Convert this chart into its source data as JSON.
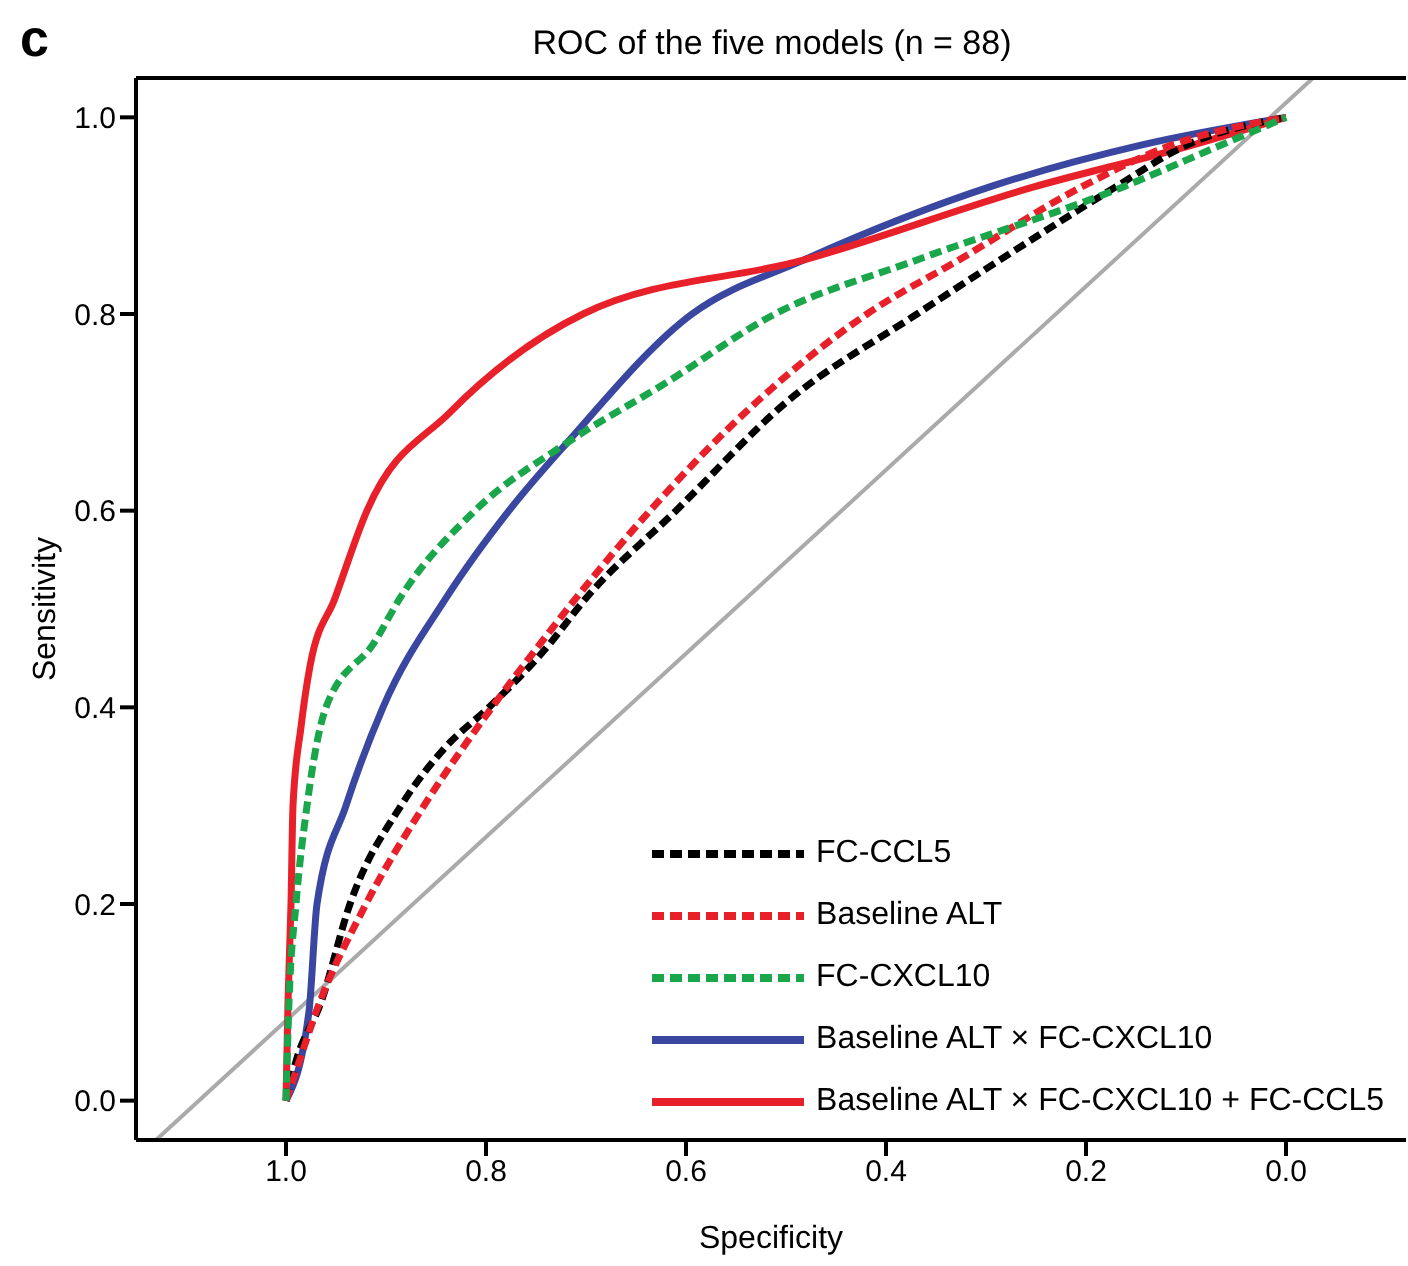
{
  "chart_data": {
    "type": "line",
    "title": "ROC of the five models (n = 88)",
    "xlabel": "Specificity",
    "ylabel": "Sensitivity",
    "annotations": [
      "c"
    ],
    "xlim": [
      1.15,
      -0.12
    ],
    "ylim": [
      -0.04,
      1.04
    ],
    "xticks": [
      {
        "value": 1,
        "label": "1.0"
      },
      0.8,
      0.6,
      0.4,
      0.2,
      {
        "value": 0,
        "label": "0.0"
      }
    ],
    "yticks": [
      {
        "value": 0,
        "label": "0.0"
      },
      0.2,
      0.4,
      0.6,
      0.8,
      {
        "value": 1,
        "label": "1.0"
      }
    ],
    "legend": "bottom right",
    "marker": "none",
    "series": [
      {
        "color": "#aaaaaa",
        "line_style": "solid",
        "x": [
          1.13,
          -0.027
        ],
        "values": [
          -0.04,
          1.04
        ]
      },
      {
        "name": "FC-CCL5",
        "color": "#000000",
        "line_style": "dashed",
        "x": [
          1,
          0.99,
          0.965,
          0.936,
          0.885,
          0.84,
          0.797,
          0.74,
          0.7,
          0.61,
          0.5,
          0.369,
          0.286,
          0.169,
          0.103,
          0
        ],
        "values": [
          0,
          0.04,
          0.1,
          0.2,
          0.3,
          0.36,
          0.4,
          0.46,
          0.511,
          0.6,
          0.71,
          0.8,
          0.855,
          0.93,
          0.97,
          1
        ]
      },
      {
        "name": "Baseline ALT",
        "color": "#e8202a",
        "line_style": "dashed",
        "x": [
          1,
          0.99,
          0.97,
          0.92,
          0.862,
          0.794,
          0.744,
          0.71,
          0.636,
          0.53,
          0.419,
          0.327,
          0.203,
          0.119,
          0
        ],
        "values": [
          0,
          0.03,
          0.09,
          0.2,
          0.3,
          0.4,
          0.467,
          0.511,
          0.6,
          0.71,
          0.8,
          0.855,
          0.93,
          0.97,
          1
        ]
      },
      {
        "name": "FC-CXCL10",
        "color": "#1aa64a",
        "line_style": "dashed",
        "x": [
          1,
          0.997,
          0.99,
          0.979,
          0.96,
          0.911,
          0.886,
          0.811,
          0.719,
          0.62,
          0.511,
          0.369,
          0.161,
          0.069,
          0
        ],
        "values": [
          0,
          0.1,
          0.2,
          0.3,
          0.4,
          0.467,
          0.511,
          0.6,
          0.669,
          0.73,
          0.8,
          0.855,
          0.93,
          0.97,
          1
        ]
      },
      {
        "name": "Baseline ALT × FC-CXCL10",
        "color": "#3a47a0",
        "line_style": "solid",
        "x": [
          1,
          0.977,
          0.969,
          0.94,
          0.903,
          0.84,
          0.777,
          0.719,
          0.594,
          0.482,
          0.294,
          0.144,
          0
        ],
        "values": [
          0,
          0.091,
          0.2,
          0.3,
          0.4,
          0.511,
          0.6,
          0.669,
          0.8,
          0.855,
          0.93,
          0.972,
          1
        ]
      },
      {
        "name": "Baseline ALT × FC-CXCL10 + FC-CCL5",
        "color": "#e8202a",
        "line_style": "solid",
        "x": [
          1,
          0.998,
          0.995,
          0.993,
          0.985,
          0.976,
          0.951,
          0.919,
          0.836,
          0.703,
          0.482,
          0.253,
          0.1,
          0
        ],
        "values": [
          0,
          0.1,
          0.2,
          0.3,
          0.38,
          0.442,
          0.511,
          0.6,
          0.7,
          0.8,
          0.855,
          0.929,
          0.97,
          1
        ]
      }
    ]
  }
}
